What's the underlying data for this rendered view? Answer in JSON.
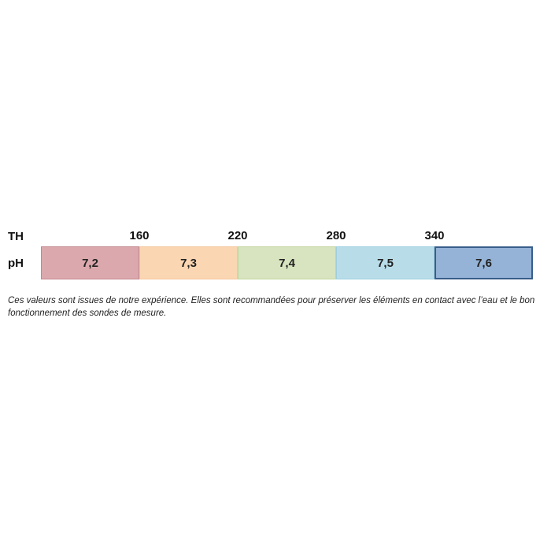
{
  "row_labels": {
    "th": "TH",
    "ph": "pH"
  },
  "th_thresholds": [
    "160",
    "220",
    "280",
    "340"
  ],
  "ph_segments": [
    {
      "value": "7,2",
      "color": "#dba9ad",
      "border": "#c4878c"
    },
    {
      "value": "7,3",
      "color": "#fbd6b2",
      "border": "#f4c79c"
    },
    {
      "value": "7,4",
      "color": "#d8e4bf",
      "border": "#c3d59f"
    },
    {
      "value": "7,5",
      "color": "#b8dde9",
      "border": "#9fcfdf"
    },
    {
      "value": "7,6",
      "color": "#95b3d7",
      "border": "#385d8a"
    }
  ],
  "note": "Ces valeurs sont issues de notre expérience. Elles sont recommandées pour préserver les éléments en contact avec l’eau et le bon fonctionnement des sondes de mesure."
}
